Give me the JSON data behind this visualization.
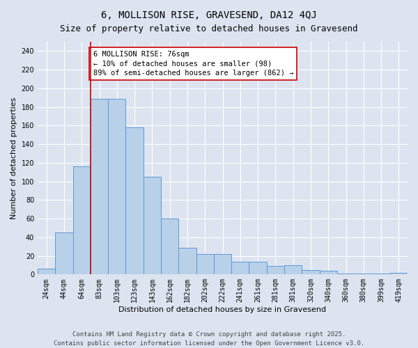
{
  "title": "6, MOLLISON RISE, GRAVESEND, DA12 4QJ",
  "subtitle": "Size of property relative to detached houses in Gravesend",
  "xlabel": "Distribution of detached houses by size in Gravesend",
  "ylabel": "Number of detached properties",
  "categories": [
    "24sqm",
    "44sqm",
    "64sqm",
    "83sqm",
    "103sqm",
    "123sqm",
    "143sqm",
    "162sqm",
    "182sqm",
    "202sqm",
    "222sqm",
    "241sqm",
    "261sqm",
    "281sqm",
    "301sqm",
    "320sqm",
    "340sqm",
    "360sqm",
    "380sqm",
    "399sqm",
    "419sqm"
  ],
  "values": [
    6,
    45,
    116,
    189,
    189,
    158,
    105,
    60,
    29,
    22,
    22,
    14,
    14,
    9,
    10,
    5,
    4,
    1,
    1,
    1,
    2
  ],
  "bar_color": "#b8d0e8",
  "bar_edge_color": "#5b9bd5",
  "vline_x": 2.5,
  "vline_color": "#cc0000",
  "annotation_text": "6 MOLLISON RISE: 76sqm\n← 10% of detached houses are smaller (98)\n89% of semi-detached houses are larger (862) →",
  "annotation_box_color": "#ffffff",
  "annotation_box_edge": "#cc0000",
  "ylim": [
    0,
    250
  ],
  "yticks": [
    0,
    20,
    40,
    60,
    80,
    100,
    120,
    140,
    160,
    180,
    200,
    220,
    240
  ],
  "background_color": "#dde4f0",
  "footer_line1": "Contains HM Land Registry data © Crown copyright and database right 2025.",
  "footer_line2": "Contains public sector information licensed under the Open Government Licence v3.0.",
  "title_fontsize": 10,
  "subtitle_fontsize": 9,
  "axis_label_fontsize": 8,
  "tick_fontsize": 7,
  "annotation_fontsize": 7.5,
  "footer_fontsize": 6.5
}
